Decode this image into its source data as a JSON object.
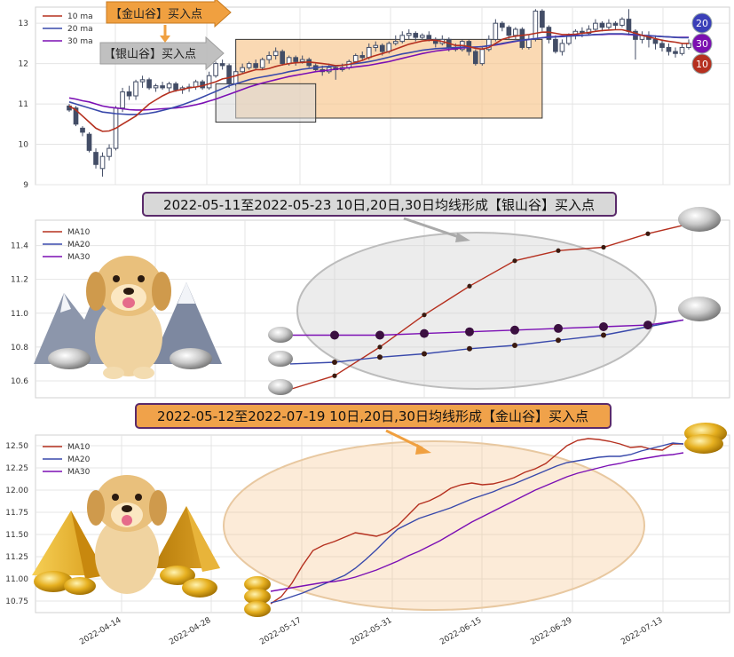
{
  "colors": {
    "ma10": "#b5301f",
    "ma20": "#3949ab",
    "ma30": "#7b0fb4",
    "candle_down": "#434d66",
    "silver_zone": "#d9d9d9",
    "gold_zone": "#f7c48a",
    "gold_arrow": "#f0a040",
    "silver_arrow": "#bdbdbd",
    "badge20": "#3a3fb8",
    "badge30": "#7b10b0",
    "badge10": "#b5301f"
  },
  "top": {
    "legend": [
      "10 ma",
      "20 ma",
      "30 ma"
    ],
    "gold_label": "【金山谷】买入点",
    "silver_label": "【银山谷】买入点",
    "badges": [
      "20",
      "30",
      "10"
    ],
    "yticks": [
      "9",
      "10",
      "11",
      "12",
      "13"
    ]
  },
  "mid": {
    "banner": "2022-05-11至2022-05-23 10日,20日,30日均线形成【银山谷】买入点",
    "legend": [
      "MA10",
      "MA20",
      "MA30"
    ],
    "yticks": [
      "10.6",
      "10.8",
      "11.0",
      "11.2",
      "11.4"
    ]
  },
  "bottom": {
    "banner": "2022-05-12至2022-07-19 10日,20日,30日均线形成【金山谷】买入点",
    "legend": [
      "MA10",
      "MA20",
      "MA30"
    ],
    "yticks": [
      "10.75",
      "11.00",
      "11.25",
      "11.50",
      "11.75",
      "12.00",
      "12.25",
      "12.50"
    ],
    "xticks": [
      "2022-04-14",
      "2022-04-28",
      "2022-05-17",
      "2022-05-31",
      "2022-06-15",
      "2022-06-29",
      "2022-07-13"
    ]
  },
  "chart_data": [
    {
      "type": "candlestick",
      "ylim": [
        9,
        13.4
      ],
      "candles": [
        [
          10.95,
          10.85,
          11.0,
          10.8
        ],
        [
          10.9,
          10.5,
          10.95,
          10.45
        ],
        [
          10.4,
          10.3,
          10.45,
          10.2
        ],
        [
          10.25,
          9.85,
          10.3,
          9.8
        ],
        [
          9.8,
          9.5,
          9.9,
          9.4
        ],
        [
          9.4,
          9.7,
          9.8,
          9.2
        ],
        [
          9.7,
          9.9,
          10.0,
          9.6
        ],
        [
          9.9,
          10.9,
          10.95,
          9.85
        ],
        [
          10.9,
          11.3,
          11.4,
          10.8
        ],
        [
          11.3,
          11.2,
          11.45,
          11.1
        ],
        [
          11.2,
          11.55,
          11.6,
          11.1
        ],
        [
          11.55,
          11.6,
          11.7,
          11.4
        ],
        [
          11.6,
          11.4,
          11.65,
          11.35
        ],
        [
          11.4,
          11.45,
          11.5,
          11.3
        ],
        [
          11.45,
          11.4,
          11.55,
          11.35
        ],
        [
          11.4,
          11.5,
          11.55,
          11.3
        ],
        [
          11.5,
          11.35,
          11.55,
          11.3
        ],
        [
          11.35,
          11.4,
          11.45,
          11.25
        ],
        [
          11.4,
          11.42,
          11.5,
          11.3
        ],
        [
          11.42,
          11.55,
          11.6,
          11.35
        ],
        [
          11.55,
          11.4,
          11.6,
          11.35
        ],
        [
          11.4,
          11.7,
          11.8,
          11.35
        ],
        [
          11.7,
          12.0,
          12.05,
          11.65
        ],
        [
          12.0,
          11.95,
          12.1,
          11.85
        ],
        [
          11.95,
          11.5,
          12.0,
          11.4
        ],
        [
          11.5,
          11.8,
          11.9,
          11.45
        ],
        [
          11.8,
          11.9,
          12.0,
          11.75
        ],
        [
          11.9,
          12.0,
          12.05,
          11.85
        ],
        [
          12.0,
          11.9,
          12.1,
          11.85
        ],
        [
          11.9,
          12.1,
          12.15,
          11.85
        ],
        [
          12.1,
          12.2,
          12.3,
          12.0
        ],
        [
          12.2,
          12.3,
          12.4,
          12.1
        ],
        [
          12.3,
          12.0,
          12.35,
          11.95
        ],
        [
          12.0,
          12.15,
          12.2,
          11.95
        ],
        [
          12.15,
          12.05,
          12.2,
          11.95
        ],
        [
          12.05,
          12.1,
          12.2,
          12.0
        ],
        [
          12.1,
          11.95,
          12.15,
          11.9
        ],
        [
          11.95,
          11.85,
          12.0,
          11.8
        ],
        [
          11.85,
          11.8,
          11.95,
          11.7
        ],
        [
          11.8,
          11.9,
          12.0,
          11.75
        ],
        [
          11.9,
          11.85,
          11.95,
          11.6
        ],
        [
          11.85,
          11.9,
          12.0,
          11.8
        ],
        [
          11.9,
          12.05,
          12.1,
          11.85
        ],
        [
          12.05,
          12.2,
          12.25,
          12.0
        ],
        [
          12.2,
          12.15,
          12.3,
          12.1
        ],
        [
          12.15,
          12.4,
          12.5,
          12.1
        ],
        [
          12.4,
          12.45,
          12.55,
          12.3
        ],
        [
          12.45,
          12.3,
          12.5,
          12.2
        ],
        [
          12.3,
          12.5,
          12.55,
          12.25
        ],
        [
          12.5,
          12.55,
          12.7,
          12.45
        ],
        [
          12.55,
          12.7,
          12.8,
          12.5
        ],
        [
          12.7,
          12.75,
          12.85,
          12.6
        ],
        [
          12.75,
          12.65,
          12.8,
          12.55
        ],
        [
          12.65,
          12.7,
          12.75,
          12.6
        ],
        [
          12.7,
          12.6,
          12.8,
          12.55
        ],
        [
          12.6,
          12.5,
          12.65,
          12.4
        ],
        [
          12.5,
          12.6,
          12.7,
          12.45
        ],
        [
          12.6,
          12.4,
          12.65,
          12.3
        ],
        [
          12.4,
          12.35,
          12.5,
          12.3
        ],
        [
          12.35,
          12.55,
          12.6,
          12.3
        ],
        [
          12.55,
          12.3,
          12.6,
          12.2
        ],
        [
          12.3,
          12.0,
          12.35,
          11.95
        ],
        [
          12.0,
          12.35,
          12.4,
          11.95
        ],
        [
          12.35,
          12.6,
          12.7,
          12.3
        ],
        [
          12.6,
          13.0,
          13.1,
          12.55
        ],
        [
          13.0,
          12.9,
          13.05,
          12.8
        ],
        [
          12.9,
          12.7,
          12.95,
          12.6
        ],
        [
          12.7,
          12.85,
          12.9,
          12.6
        ],
        [
          12.85,
          12.4,
          12.9,
          12.35
        ],
        [
          12.4,
          12.6,
          12.7,
          12.35
        ],
        [
          12.6,
          13.3,
          13.35,
          12.55
        ],
        [
          13.3,
          12.9,
          13.35,
          12.8
        ],
        [
          12.9,
          12.6,
          12.95,
          12.5
        ],
        [
          12.6,
          12.3,
          12.7,
          12.25
        ],
        [
          12.3,
          12.5,
          12.6,
          12.2
        ],
        [
          12.5,
          12.7,
          12.75,
          12.45
        ],
        [
          12.7,
          12.8,
          12.85,
          12.6
        ],
        [
          12.8,
          12.75,
          12.9,
          12.65
        ],
        [
          12.75,
          12.85,
          12.95,
          12.7
        ],
        [
          12.85,
          13.0,
          13.1,
          12.8
        ],
        [
          13.0,
          12.9,
          13.05,
          12.8
        ],
        [
          12.9,
          13.0,
          13.1,
          12.85
        ],
        [
          13.0,
          12.95,
          13.05,
          12.85
        ],
        [
          12.95,
          13.1,
          13.15,
          12.9
        ],
        [
          13.1,
          12.8,
          13.35,
          12.7
        ],
        [
          12.8,
          12.6,
          12.85,
          12.1
        ],
        [
          12.6,
          12.7,
          12.8,
          12.5
        ],
        [
          12.7,
          12.6,
          12.8,
          12.4
        ],
        [
          12.6,
          12.5,
          12.7,
          12.35
        ],
        [
          12.5,
          12.4,
          12.6,
          12.3
        ],
        [
          12.4,
          12.3,
          12.5,
          12.2
        ],
        [
          12.3,
          12.25,
          12.4,
          12.15
        ],
        [
          12.25,
          12.4,
          12.5,
          12.2
        ],
        [
          12.4,
          12.5,
          12.6,
          12.35
        ]
      ],
      "ma10": [
        10.95,
        10.85,
        10.7,
        10.55,
        10.4,
        10.32,
        10.33,
        10.4,
        10.5,
        10.6,
        10.7,
        10.85,
        11.0,
        11.1,
        11.2,
        11.28,
        11.33,
        11.36,
        11.4,
        11.42,
        11.45,
        11.5,
        11.55,
        11.62,
        11.65,
        11.7,
        11.75,
        11.8,
        11.85,
        11.85,
        11.88,
        11.93,
        11.97,
        12.0,
        12.02,
        12.03,
        12.04,
        12.02,
        12.0,
        11.98,
        11.95,
        11.96,
        11.98,
        12.03,
        12.08,
        12.15,
        12.2,
        12.25,
        12.3,
        12.36,
        12.42,
        12.48,
        12.52,
        12.56,
        12.58,
        12.58,
        12.55,
        12.5,
        12.45,
        12.45,
        12.42,
        12.38,
        12.36,
        12.4,
        12.5,
        12.6,
        12.65,
        12.68,
        12.7,
        12.72,
        12.75,
        12.78,
        12.78,
        12.75,
        12.72,
        12.72,
        12.73,
        12.75,
        12.77,
        12.8,
        12.82,
        12.83,
        12.84,
        12.84,
        12.8,
        12.75,
        12.7,
        12.66,
        12.62,
        12.58,
        12.55,
        12.53,
        12.5,
        12.5
      ],
      "ma20": [
        11.05,
        11.0,
        10.95,
        10.9,
        10.85,
        10.8,
        10.78,
        10.76,
        10.75,
        10.74,
        10.74,
        10.75,
        10.77,
        10.8,
        10.84,
        10.88,
        10.93,
        10.98,
        11.04,
        11.1,
        11.17,
        11.24,
        11.31,
        11.38,
        11.45,
        11.5,
        11.55,
        11.6,
        11.64,
        11.67,
        11.7,
        11.73,
        11.76,
        11.8,
        11.83,
        11.86,
        11.88,
        11.9,
        11.92,
        11.93,
        11.94,
        11.96,
        11.98,
        12.0,
        12.02,
        12.05,
        12.08,
        12.12,
        12.16,
        12.2,
        12.24,
        12.27,
        12.3,
        12.33,
        12.35,
        12.37,
        12.38,
        12.39,
        12.4,
        12.41,
        12.41,
        12.41,
        12.42,
        12.44,
        12.47,
        12.5,
        12.53,
        12.56,
        12.58,
        12.6,
        12.62,
        12.64,
        12.65,
        12.66,
        12.67,
        12.68,
        12.69,
        12.7,
        12.71,
        12.72,
        12.73,
        12.74,
        12.74,
        12.74,
        12.73,
        12.72,
        12.7,
        12.69,
        12.68,
        12.67,
        12.66,
        12.65,
        12.64,
        12.64
      ],
      "ma30": [
        11.15,
        11.12,
        11.08,
        11.05,
        11.0,
        10.95,
        10.92,
        10.9,
        10.88,
        10.86,
        10.85,
        10.85,
        10.86,
        10.87,
        10.88,
        10.89,
        10.9,
        10.92,
        10.95,
        10.98,
        11.02,
        11.07,
        11.12,
        11.18,
        11.24,
        11.3,
        11.36,
        11.42,
        11.47,
        11.52,
        11.56,
        11.6,
        11.64,
        11.68,
        11.71,
        11.74,
        11.77,
        11.8,
        11.82,
        11.84,
        11.86,
        11.88,
        11.9,
        11.92,
        11.94,
        11.96,
        11.99,
        12.02,
        12.05,
        12.09,
        12.13,
        12.17,
        12.21,
        12.25,
        12.28,
        12.31,
        12.33,
        12.35,
        12.37,
        12.39,
        12.4,
        12.41,
        12.42,
        12.44,
        12.46,
        12.49,
        12.52,
        12.55,
        12.58,
        12.6,
        12.62,
        12.64,
        12.66,
        12.67,
        12.68,
        12.69,
        12.7,
        12.7,
        12.71,
        12.72,
        12.72,
        12.73,
        12.73,
        12.73,
        12.72,
        12.71,
        12.7,
        12.69,
        12.68,
        12.67,
        12.66,
        12.65,
        12.65,
        12.65
      ]
    },
    {
      "type": "line",
      "ylim": [
        10.5,
        11.55
      ],
      "series": [
        {
          "name": "MA10",
          "values": [
            10.55,
            10.63,
            10.8,
            10.99,
            11.16,
            11.31,
            11.37,
            11.39,
            11.47,
            11.52
          ]
        },
        {
          "name": "MA20",
          "values": [
            10.7,
            10.71,
            10.74,
            10.76,
            10.79,
            10.81,
            10.84,
            10.87,
            10.92,
            10.96
          ]
        },
        {
          "name": "MA30",
          "values": [
            10.87,
            10.87,
            10.87,
            10.88,
            10.89,
            10.9,
            10.91,
            10.92,
            10.93,
            10.96
          ]
        }
      ]
    },
    {
      "type": "line",
      "ylim": [
        10.62,
        12.62
      ],
      "xlabels": [
        "2022-04-14",
        "2022-04-28",
        "2022-05-17",
        "2022-05-31",
        "2022-06-15",
        "2022-06-29",
        "2022-07-13"
      ],
      "series": [
        {
          "name": "MA10",
          "values": [
            10.72,
            10.8,
            10.95,
            11.15,
            11.32,
            11.38,
            11.42,
            11.47,
            11.52,
            11.5,
            11.48,
            11.52,
            11.6,
            11.72,
            11.84,
            11.88,
            11.94,
            12.02,
            12.06,
            12.08,
            12.06,
            12.07,
            12.1,
            12.14,
            12.2,
            12.24,
            12.3,
            12.4,
            12.5,
            12.56,
            12.58,
            12.57,
            12.55,
            12.52,
            12.48,
            12.49,
            12.46,
            12.45,
            12.52,
            12.52
          ]
        },
        {
          "name": "MA20",
          "values": [
            10.73,
            10.76,
            10.8,
            10.84,
            10.89,
            10.94,
            10.99,
            11.04,
            11.12,
            11.22,
            11.33,
            11.45,
            11.56,
            11.62,
            11.68,
            11.72,
            11.76,
            11.8,
            11.85,
            11.9,
            11.94,
            11.98,
            12.03,
            12.07,
            12.12,
            12.17,
            12.22,
            12.27,
            12.31,
            12.33,
            12.35,
            12.37,
            12.38,
            12.38,
            12.4,
            12.44,
            12.47,
            12.5,
            12.53,
            12.52
          ]
        },
        {
          "name": "MA30",
          "values": [
            10.86,
            10.88,
            10.9,
            10.92,
            10.94,
            10.96,
            10.97,
            10.99,
            11.02,
            11.06,
            11.1,
            11.15,
            11.2,
            11.26,
            11.31,
            11.37,
            11.43,
            11.5,
            11.57,
            11.64,
            11.7,
            11.76,
            11.82,
            11.88,
            11.94,
            12.0,
            12.05,
            12.1,
            12.15,
            12.19,
            12.22,
            12.25,
            12.28,
            12.3,
            12.33,
            12.35,
            12.37,
            12.39,
            12.4,
            12.42
          ]
        }
      ]
    }
  ]
}
